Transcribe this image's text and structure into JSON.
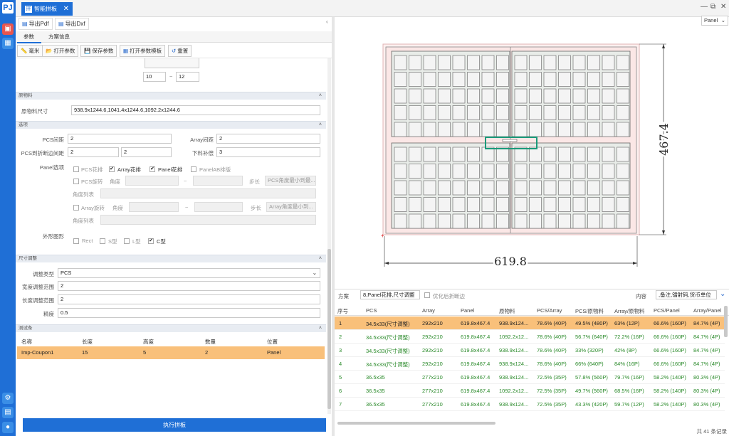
{
  "app": {
    "logo_glyph": "PJ",
    "tab_title": "智能拼板",
    "tab_icon_glyph": "拼",
    "close_glyph": "✕"
  },
  "window": {
    "minimize": "—",
    "restore": "⧉",
    "close": "✕"
  },
  "leftbar": {
    "icons": [
      "apps-icon",
      "grid-icon",
      "settings-icon",
      "panel-icon",
      "user-icon"
    ]
  },
  "export": {
    "pdf_label": "导出Pdf",
    "dxf_label": "导出Dxf"
  },
  "subtabs": {
    "params": "参数",
    "scheme": "方案信息"
  },
  "toolbar": {
    "unit": "毫米",
    "open_params": "打开参数",
    "save_params": "保存参数",
    "open_template": "打开参数模板",
    "reset": "重置"
  },
  "range": {
    "min": "10",
    "sep": "~",
    "max": "12"
  },
  "material": {
    "section": "原物料",
    "label": "原物料尺寸",
    "value": "938.9x1244.6,1041.4x1244.6,1092.2x1244.6"
  },
  "options": {
    "section": "选项",
    "pcs_gap_label": "PCS间距",
    "pcs_gap": "2",
    "array_gap_label": "Array间距",
    "array_gap": "2",
    "pcs_edge_label": "PCS到折断边间距",
    "pcs_edge_1": "2",
    "pcs_edge_2": "2",
    "cut_label": "下料补偿",
    "cut": "3",
    "panel_opt_label": "Panel选项",
    "pcs_flower": "PCS花排",
    "array_flower": "Array花排",
    "panel_flower": "Panel花排",
    "panel_ab": "PanelAB排版",
    "pcs_rotate": "PCS旋转",
    "angle": "角度",
    "tilde": "~",
    "step": "步长",
    "pcs_step_ph": "PCS角度最小到最...",
    "angle_list": "角度列表",
    "array_rotate": "Array旋转",
    "array_step_ph": "Array角度最小到...",
    "shape_label": "外形图形",
    "rect": "Rect",
    "s_shape": "S型",
    "l_shape": "L型",
    "c_shape": "C型"
  },
  "size_adjust": {
    "section": "尺寸调整",
    "type_label": "调整类型",
    "type_value": "PCS",
    "width_label": "宽度调整范围",
    "width_value": "2",
    "length_label": "长度调整范围",
    "length_value": "2",
    "precision_label": "精度",
    "precision_value": "0.5"
  },
  "test_strip": {
    "section": "测试条",
    "headers": [
      "名称",
      "长度",
      "高度",
      "数量",
      "位置"
    ],
    "row": [
      "Imp-Coupon1",
      "15",
      "5",
      "2",
      "Panel"
    ]
  },
  "run_label": "执行拼板",
  "view_select": "Panel",
  "drawing": {
    "width_dim": "619.8",
    "height_dim": "467.4"
  },
  "filter": {
    "scheme_label": "方案",
    "scheme_value": "8,Panel花排,尺寸调整",
    "optimize_label": "优化后折断边",
    "content_label": "内容",
    "content_value": ",备注,镭射码,货币单位"
  },
  "results": {
    "headers": [
      "序号",
      "PCS",
      "Array",
      "Panel",
      "原物料",
      "PCS/Array",
      "PCS/原物料",
      "Array/原物料",
      "PCS/Panel",
      "Array/Panel"
    ],
    "rows": [
      [
        "1",
        "34.5x33(尺寸调整)",
        "292x210",
        "619.8x467.4",
        "938.9x124...",
        "78.6% (40P)",
        "49.5% (480P)",
        "63% (12P)",
        "66.6% (160P)",
        "84.7% (4P)"
      ],
      [
        "2",
        "34.5x33(尺寸调整)",
        "292x210",
        "619.8x467.4",
        "1092.2x12...",
        "78.6% (40P)",
        "56.7% (640P)",
        "72.2% (16P)",
        "66.6% (160P)",
        "84.7% (4P)"
      ],
      [
        "3",
        "34.5x33(尺寸调整)",
        "292x210",
        "619.8x467.4",
        "938.9x124...",
        "78.6% (40P)",
        "33% (320P)",
        "42% (8P)",
        "66.6% (160P)",
        "84.7% (4P)"
      ],
      [
        "4",
        "34.5x33(尺寸调整)",
        "292x210",
        "619.8x467.4",
        "938.9x124...",
        "78.6% (40P)",
        "66% (640P)",
        "84% (16P)",
        "66.6% (160P)",
        "84.7% (4P)"
      ],
      [
        "5",
        "36.5x35",
        "277x210",
        "619.8x467.4",
        "938.9x124...",
        "72.5% (35P)",
        "57.8% (560P)",
        "79.7% (16P)",
        "58.2% (140P)",
        "80.3% (4P)"
      ],
      [
        "6",
        "36.5x35",
        "277x210",
        "619.8x467.4",
        "1092.2x12...",
        "72.5% (35P)",
        "49.7% (560P)",
        "68.5% (16P)",
        "58.2% (140P)",
        "80.3% (4P)"
      ],
      [
        "7",
        "36.5x35",
        "277x210",
        "619.8x467.4",
        "938.9x124...",
        "72.5% (35P)",
        "43.3% (420P)",
        "59.7% (12P)",
        "58.2% (140P)",
        "80.3% (4P)"
      ]
    ]
  },
  "status": "共 41 条记录",
  "colors": {
    "accent": "#1f6fd6",
    "selected_row": "#f9c07a",
    "green_text": "#2a8a2a"
  }
}
